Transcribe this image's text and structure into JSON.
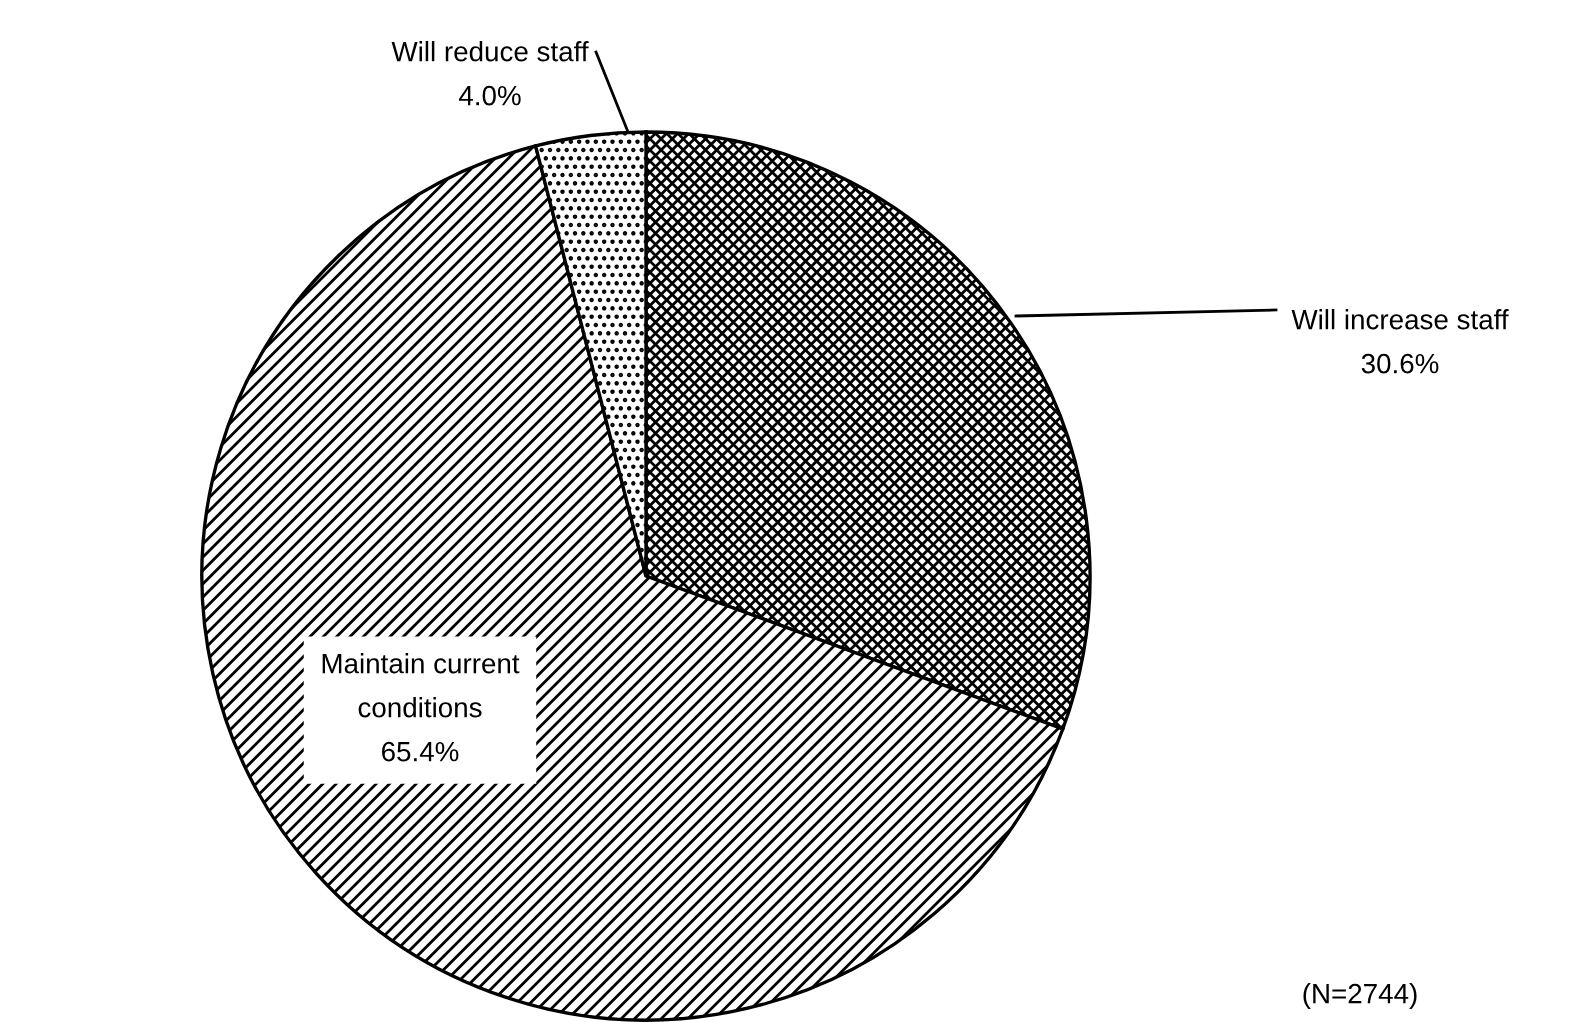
{
  "chart_data": {
    "type": "pie",
    "categories": [
      "Will increase staff",
      "Maintain current conditions",
      "Will reduce staff"
    ],
    "values": [
      30.6,
      65.4,
      4.0
    ],
    "value_labels": [
      "30.6%",
      "65.4%",
      "4.0%"
    ],
    "annotations": [
      "(N=2744)"
    ]
  }
}
